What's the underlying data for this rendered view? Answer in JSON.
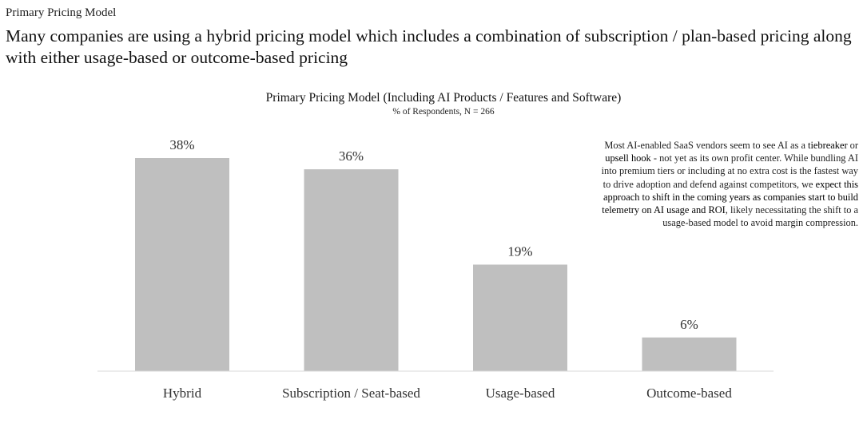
{
  "header": {
    "kicker": "Primary Pricing Model",
    "headline": "Many companies are using a hybrid pricing model which includes a combination of subscription / plan-based pricing along with either usage-based or outcome-based pricing"
  },
  "annotation": {
    "parts": [
      {
        "text": "Most AI-enabled SaaS vendors seem to see AI as a ",
        "bold": false
      },
      {
        "text": "tiebreaker",
        "bold": true
      },
      {
        "text": " or ",
        "bold": false
      },
      {
        "text": "upsell hook",
        "bold": true
      },
      {
        "text": " - not yet as its own profit center. While bundling AI into premium tiers or including at no extra cost is the fastest way to drive adoption and defend against competitors, we ",
        "bold": false
      },
      {
        "text": "expect this approach to shift in the coming years as companies start to build telemetry on AI usage and ROI",
        "bold": true
      },
      {
        "text": ", likely necessitating the shift to a usage-based model to avoid margin compression.",
        "bold": false
      }
    ]
  },
  "chart_data": {
    "type": "bar",
    "title": "Primary Pricing Model (Including AI Products / Features and Software)",
    "subtitle": "% of Respondents, N = 266",
    "categories": [
      "Hybrid",
      "Subscription / Seat-based",
      "Usage-based",
      "Outcome-based"
    ],
    "values": [
      38,
      36,
      19,
      6
    ],
    "value_labels": [
      "38%",
      "36%",
      "19%",
      "6%"
    ],
    "xlabel": "",
    "ylabel": "",
    "ylim": [
      0,
      38
    ],
    "grid": false,
    "legend": "none",
    "colors": {
      "bar": "#bfbfbf",
      "axis": "#d9d9d9"
    }
  }
}
